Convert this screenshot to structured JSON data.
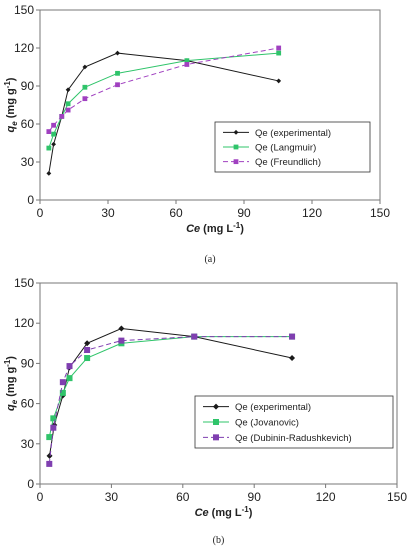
{
  "chart_data": [
    {
      "type": "line",
      "panel_label": "(a)",
      "xlabel": {
        "main": "Ce",
        "unit": " (mg L",
        "sup": "-1",
        "close": ")"
      },
      "ylabel": {
        "main": "q",
        "sub": "e",
        "unit": " (mg g",
        "sup": "-1",
        "close": ")"
      },
      "xlim": [
        0,
        150
      ],
      "ylim": [
        0,
        150
      ],
      "xticks": [
        0,
        30,
        60,
        90,
        120,
        150
      ],
      "yticks": [
        0,
        30,
        60,
        90,
        120,
        150
      ],
      "grid": false,
      "legend_position": "center-right",
      "series": [
        {
          "name": "Qe (experimental)",
          "color": "#1a1a1a",
          "dash": "solid",
          "marker": "diamond",
          "x": [
            3.9,
            6.0,
            9.6,
            12.4,
            19.8,
            34.2,
            64.8,
            105.3
          ],
          "y": [
            21,
            44,
            66,
            87,
            105,
            116,
            110,
            94
          ]
        },
        {
          "name": "Qe (Langmuir)",
          "color": "#2fc46a",
          "dash": "solid",
          "marker": "square",
          "x": [
            3.9,
            6.0,
            9.6,
            12.4,
            19.8,
            34.2,
            64.8,
            105.3
          ],
          "y": [
            41,
            52,
            66,
            76,
            89,
            100,
            110,
            116
          ]
        },
        {
          "name": "Qe (Freundlich)",
          "color": "#a040c0",
          "dash": "dashed",
          "marker": "square",
          "x": [
            3.9,
            6.0,
            9.6,
            12.4,
            19.8,
            34.2,
            64.8,
            105.3
          ],
          "y": [
            54,
            59,
            66,
            71,
            80,
            91,
            107,
            120
          ]
        }
      ]
    },
    {
      "type": "line",
      "panel_label": "(b)",
      "xlabel": {
        "main": "Ce",
        "unit": " (mg L",
        "sup": "-1",
        "close": ")"
      },
      "ylabel": {
        "main": "q",
        "sub": "e",
        "unit": " (mg g",
        "sup": "-1",
        "close": ")"
      },
      "xlim": [
        0,
        150
      ],
      "ylim": [
        0,
        150
      ],
      "xticks": [
        0,
        30,
        60,
        90,
        120,
        150
      ],
      "yticks": [
        0,
        30,
        60,
        90,
        120,
        150
      ],
      "grid": false,
      "legend_position": "center-right",
      "series": [
        {
          "name": "Qe (experimental)",
          "color": "#1a1a1a",
          "dash": "solid",
          "marker": "diamond",
          "x": [
            4.0,
            6.0,
            9.6,
            12.4,
            19.8,
            34.2,
            64.8,
            105.9
          ],
          "y": [
            21,
            44,
            66,
            87,
            105,
            116,
            110,
            94
          ]
        },
        {
          "name": "Qe (Jovanovic)",
          "color": "#2fc46a",
          "dash": "solid",
          "marker": "square",
          "x": [
            3.9,
            5.6,
            9.6,
            12.4,
            19.8,
            34.2,
            64.8,
            105.9
          ],
          "y": [
            35,
            49,
            68,
            79,
            94,
            105,
            110,
            110
          ]
        },
        {
          "name": "Qe (Dubinin-Radushkevich)",
          "color": "#7f3fb0",
          "dash": "dashed",
          "marker": "square",
          "x": [
            3.9,
            5.6,
            9.6,
            12.4,
            19.8,
            34.2,
            64.8,
            105.9
          ],
          "y": [
            15,
            42,
            76,
            88,
            100,
            107,
            110,
            110
          ]
        }
      ]
    }
  ]
}
